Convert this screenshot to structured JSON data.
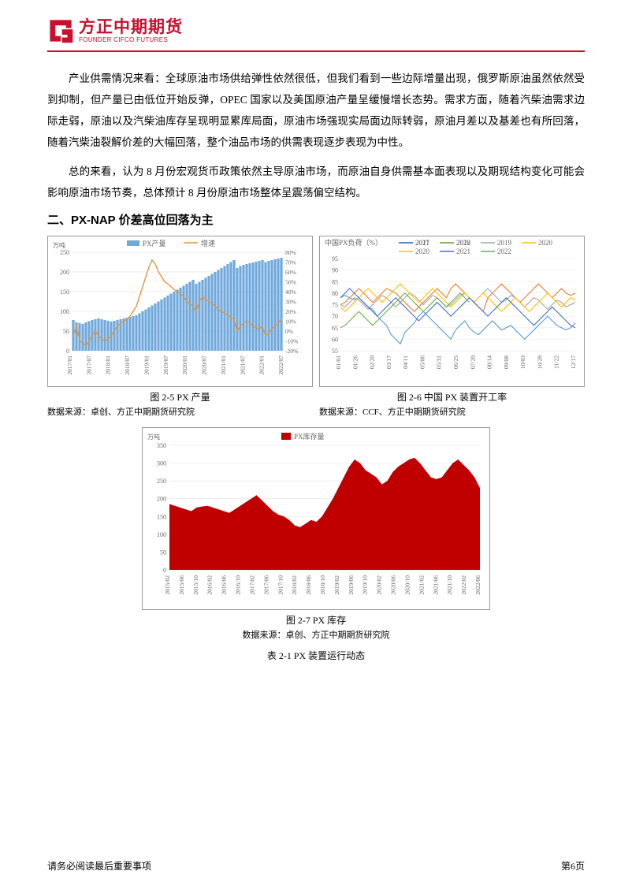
{
  "header": {
    "logo_cn": "方正中期期货",
    "logo_en": "FOUNDER CIFCO FUTURES",
    "logo_color": "#c8102e"
  },
  "paragraphs": {
    "p1": "产业供需情况来看：全球原油市场供给弹性依然很低，但我们看到一些边际增量出现，俄罗斯原油虽然依然受到抑制，但产量已由低位开始反弹，OPEC 国家以及美国原油产量呈缓慢增长态势。需求方面，随着汽柴油需求边际走弱，原油以及汽柴油库存呈现明显累库局面，原油市场强现实局面边际转弱，原油月差以及基差也有所回落，随着汽柴油裂解价差的大幅回落，整个油品市场的供需表现逐步表现为中性。",
    "p2": "总的来看，认为 8 月份宏观货币政策依然主导原油市场，而原油自身供需基本面表现以及期现结构变化可能会影响原油市场节奏，总体预计 8 月份原油市场整体呈震荡偏空结构。"
  },
  "section_heading": "二、PX-NAP 价差高位回落为主",
  "chart25": {
    "type": "bar+line",
    "title": "",
    "legend_bar": "PX产量",
    "legend_line": "增速",
    "y_left_unit": "万吨",
    "y_left": {
      "min": 0,
      "max": 250,
      "step": 50
    },
    "y_right": {
      "min": -20,
      "max": 80,
      "step": 10,
      "suffix": "%"
    },
    "x_labels": [
      "2017/01",
      "2017/07",
      "2018/01",
      "2018/07",
      "2019/01",
      "2019/07",
      "2020/01",
      "2020/07",
      "2021/01",
      "2021/07",
      "2022/01",
      "2022/07"
    ],
    "bars": [
      78,
      72,
      70,
      68,
      72,
      75,
      78,
      80,
      82,
      80,
      78,
      76,
      74,
      76,
      78,
      80,
      82,
      84,
      86,
      88,
      90,
      95,
      100,
      105,
      110,
      115,
      120,
      125,
      130,
      135,
      140,
      145,
      150,
      155,
      160,
      165,
      170,
      175,
      180,
      170,
      175,
      180,
      185,
      190,
      195,
      200,
      205,
      210,
      215,
      220,
      225,
      230,
      210,
      215,
      218,
      220,
      222,
      224,
      226,
      228,
      230,
      225,
      228,
      230,
      232,
      234,
      236
    ],
    "bar_color": "#6fa8dc",
    "line_values": [
      -5,
      5,
      -10,
      -12,
      -15,
      -10,
      -5,
      0,
      -5,
      -8,
      -10,
      -8,
      -5,
      0,
      5,
      8,
      10,
      12,
      15,
      20,
      25,
      35,
      45,
      55,
      65,
      72,
      68,
      60,
      55,
      50,
      48,
      45,
      42,
      40,
      38,
      35,
      30,
      28,
      25,
      20,
      30,
      35,
      32,
      30,
      28,
      25,
      22,
      20,
      18,
      16,
      14,
      12,
      0,
      5,
      8,
      10,
      8,
      5,
      3,
      2,
      5,
      -5,
      -2,
      2,
      5,
      8,
      12
    ],
    "line_color": "#e69138",
    "grid_color": "#d9d9d9",
    "caption": "图 2-5 PX 产量",
    "source": "数据来源：卓创、方正中期期货研究院"
  },
  "chart26": {
    "type": "line",
    "title": "中国PX负荷（%）",
    "legend": [
      {
        "label": "2017",
        "color": "#5b9bd5"
      },
      {
        "label": "2018",
        "color": "#ed7d31"
      },
      {
        "label": "2019",
        "color": "#a5a5a5"
      },
      {
        "label": "2020",
        "color": "#ffc000"
      },
      {
        "label": "2021",
        "color": "#4472c4"
      },
      {
        "label": "2022",
        "color": "#70ad47"
      }
    ],
    "y": {
      "min": 55,
      "max": 95,
      "step": 5
    },
    "x_labels": [
      "01/01",
      "01/26",
      "02/20",
      "03/17",
      "04/11",
      "05/06",
      "05/31",
      "06/25",
      "07/20",
      "08/14",
      "09/08",
      "10/03",
      "10/28",
      "11/22",
      "12/17"
    ],
    "series": {
      "2017": [
        78,
        79,
        78,
        77,
        78,
        76,
        74,
        73,
        70,
        68,
        66,
        62,
        60,
        58,
        63,
        65,
        67,
        70,
        72,
        70,
        68,
        66,
        64,
        62,
        60,
        64,
        66,
        68,
        65,
        63,
        62,
        64,
        66,
        68,
        66,
        64,
        65,
        66,
        64,
        62,
        60,
        62,
        64,
        66,
        68,
        70,
        68,
        66,
        65,
        64,
        65,
        67
      ],
      "2018": [
        75,
        76,
        78,
        80,
        82,
        80,
        78,
        76,
        78,
        80,
        82,
        81,
        80,
        78,
        76,
        74,
        72,
        74,
        76,
        78,
        80,
        82,
        80,
        78,
        82,
        84,
        82,
        80,
        78,
        76,
        74,
        72,
        78,
        80,
        82,
        84,
        82,
        80,
        78,
        76,
        78,
        80,
        82,
        84,
        82,
        80,
        78,
        80,
        82,
        80,
        79,
        80
      ],
      "2019": [
        75,
        74,
        76,
        78,
        77,
        75,
        73,
        75,
        77,
        79,
        78,
        76,
        74,
        76,
        78,
        80,
        79,
        77,
        75,
        77,
        79,
        78,
        76,
        74,
        75,
        77,
        79,
        80,
        78,
        76,
        78,
        80,
        82,
        80,
        78,
        76,
        77,
        79,
        78,
        76,
        74,
        76,
        78,
        77,
        75,
        73,
        75,
        77,
        76,
        74,
        75,
        76
      ],
      "2020": [
        74,
        72,
        74,
        76,
        78,
        80,
        82,
        80,
        78,
        76,
        78,
        80,
        82,
        84,
        82,
        80,
        78,
        76,
        78,
        80,
        82,
        80,
        78,
        76,
        74,
        76,
        78,
        80,
        78,
        76,
        78,
        80,
        78,
        76,
        74,
        72,
        74,
        76,
        78,
        76,
        74,
        72,
        74,
        76,
        78,
        80,
        78,
        76,
        74,
        76,
        78,
        77
      ],
      "2021": [
        78,
        80,
        82,
        80,
        78,
        76,
        74,
        72,
        70,
        72,
        74,
        76,
        78,
        76,
        74,
        72,
        70,
        68,
        70,
        72,
        74,
        76,
        74,
        72,
        70,
        72,
        74,
        76,
        78,
        76,
        74,
        72,
        70,
        72,
        74,
        76,
        78,
        76,
        74,
        72,
        70,
        68,
        66,
        68,
        70,
        72,
        74,
        72,
        70,
        68,
        66,
        65
      ],
      "2022": [
        65,
        66,
        68,
        70,
        72,
        70,
        68,
        66,
        68,
        70,
        72,
        74,
        76,
        78,
        80,
        78,
        76,
        74,
        72,
        74,
        76,
        78,
        76,
        74,
        76,
        78,
        80,
        78,
        76
      ]
    },
    "grid_color": "#e8e8e8",
    "caption": "图 2-6 中国 PX 装置开工率",
    "source": "数据来源：CCF、方正中期期货研究院"
  },
  "chart27": {
    "type": "area",
    "legend": "PX库存量",
    "y_unit": "万吨",
    "y": {
      "min": 0,
      "max": 350,
      "step": 50
    },
    "x_labels": [
      "2015/02",
      "2015/06",
      "2015/10",
      "2016/02",
      "2016/06",
      "2016/10",
      "2017/02",
      "2017/06",
      "2017/10",
      "2018/02",
      "2018/06",
      "2018/10",
      "2019/02",
      "2019/06",
      "2019/10",
      "2020/02",
      "2020/06",
      "2020/10",
      "2021/02",
      "2021/06",
      "2021/10",
      "2022/02",
      "2022/06"
    ],
    "values": [
      185,
      180,
      175,
      170,
      165,
      175,
      178,
      180,
      175,
      170,
      165,
      160,
      170,
      180,
      190,
      200,
      210,
      195,
      180,
      165,
      155,
      150,
      140,
      125,
      120,
      130,
      140,
      135,
      150,
      175,
      200,
      230,
      260,
      290,
      310,
      300,
      280,
      270,
      260,
      240,
      250,
      275,
      290,
      300,
      310,
      315,
      300,
      280,
      260,
      255,
      260,
      280,
      300,
      310,
      295,
      280,
      260,
      230
    ],
    "fill_color": "#c00000",
    "caption": "图 2-7 PX 库存",
    "source": "数据来源：卓创、方正中期期货研究院",
    "table_caption": "表 2-1 PX 装置运行动态"
  },
  "footer": {
    "left": "请务必阅读最后重要事项",
    "right": "第6页"
  }
}
